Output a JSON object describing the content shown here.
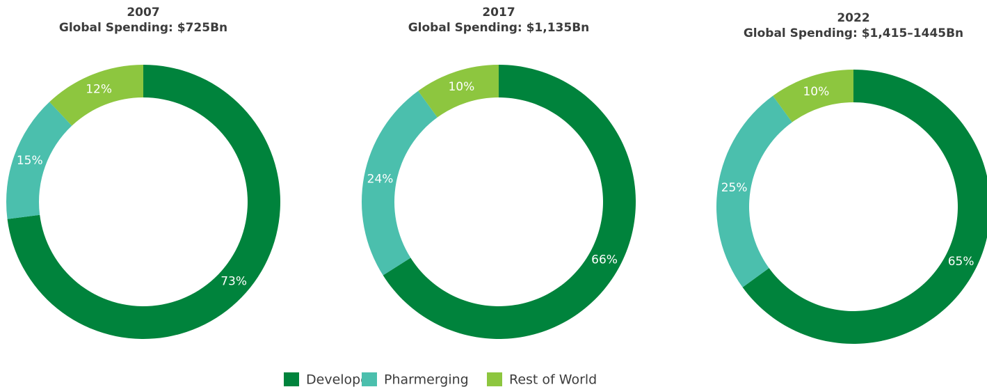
{
  "chart_data": [
    {
      "type": "donut",
      "title": "2007",
      "subtitle": "Global Spending: $725Bn",
      "categories": [
        "Developed",
        "Pharmerging",
        "Rest of World"
      ],
      "values": [
        73,
        15,
        12
      ],
      "value_labels": [
        "73%",
        "15%",
        "12%"
      ],
      "colors": [
        "#00833c",
        "#4bbfad",
        "#8dc63f"
      ]
    },
    {
      "type": "donut",
      "title": "2017",
      "subtitle": "Global Spending: $1,135Bn",
      "categories": [
        "Developed",
        "Pharmerging",
        "Rest of World"
      ],
      "values": [
        66,
        24,
        10
      ],
      "value_labels": [
        "66%",
        "24%",
        "10%"
      ],
      "colors": [
        "#00833c",
        "#4bbfad",
        "#8dc63f"
      ]
    },
    {
      "type": "donut",
      "title": "2022",
      "subtitle": "Global Spending: $1,415–1445Bn",
      "categories": [
        "Developed",
        "Pharmerging",
        "Rest of World"
      ],
      "values": [
        65,
        25,
        10
      ],
      "value_labels": [
        "65%",
        "25%",
        "10%"
      ],
      "colors": [
        "#00833c",
        "#4bbfad",
        "#8dc63f"
      ]
    }
  ]
}
